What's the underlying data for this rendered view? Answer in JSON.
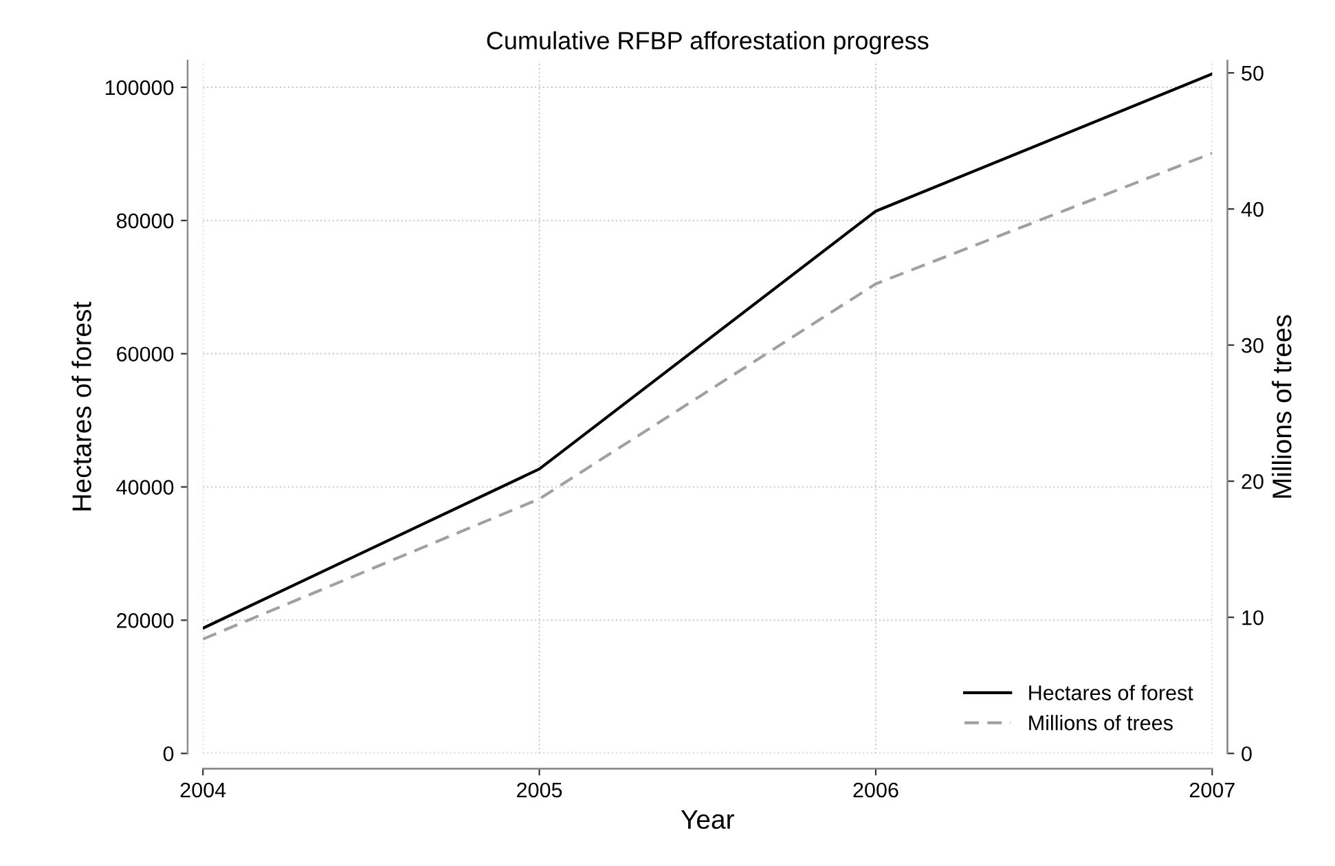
{
  "chart_data": {
    "type": "line",
    "title": "Cumulative RFBP afforestation progress",
    "xlabel": "Year",
    "ylabel": "Hectares of forest",
    "y2label": "Millions of trees",
    "x": [
      2004,
      2005,
      2006,
      2007
    ],
    "xlim": [
      2004,
      2007
    ],
    "xticks": [
      2004,
      2005,
      2006,
      2007
    ],
    "ylim": [
      0,
      104000
    ],
    "yticks": [
      0,
      20000,
      40000,
      60000,
      80000,
      100000
    ],
    "y2lim": [
      0,
      50.9
    ],
    "y2ticks": [
      0,
      10,
      20,
      30,
      40,
      50
    ],
    "series": [
      {
        "name": "Hectares of forest",
        "color": "#000000",
        "line_style": "solid",
        "values": [
          18800,
          42700,
          81400,
          102000
        ]
      },
      {
        "name": "Millions of trees",
        "color": "#a0a0a0",
        "line_style": "dashed",
        "axis": "y2",
        "values": [
          8.4,
          18.7,
          34.5,
          44.1
        ]
      }
    ],
    "grid": true,
    "legend": "bottom right",
    "marker": "none"
  }
}
